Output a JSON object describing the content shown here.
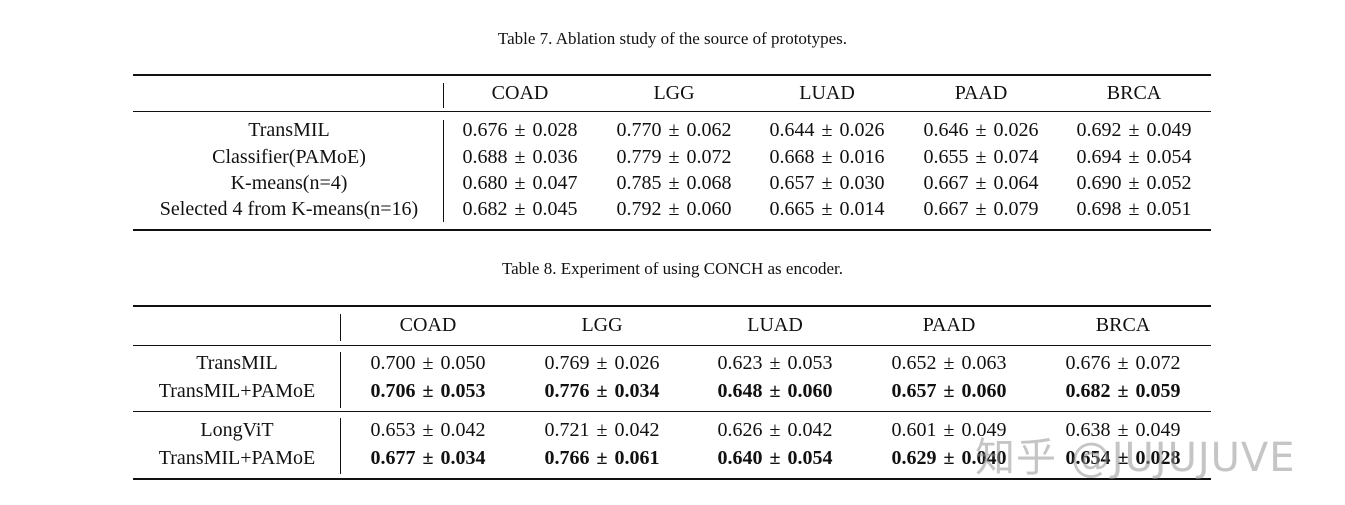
{
  "table7": {
    "caption": "Table 7. Ablation study of the source of prototypes.",
    "columns": [
      "COAD",
      "LGG",
      "LUAD",
      "PAAD",
      "BRCA"
    ],
    "rows": [
      {
        "label": "TransMIL",
        "values": [
          [
            "0.676",
            "0.028"
          ],
          [
            "0.770",
            "0.062"
          ],
          [
            "0.644",
            "0.026"
          ],
          [
            "0.646",
            "0.026"
          ],
          [
            "0.692",
            "0.049"
          ]
        ]
      },
      {
        "label": "Classifier(PAMoE)",
        "values": [
          [
            "0.688",
            "0.036"
          ],
          [
            "0.779",
            "0.072"
          ],
          [
            "0.668",
            "0.016"
          ],
          [
            "0.655",
            "0.074"
          ],
          [
            "0.694",
            "0.054"
          ]
        ]
      },
      {
        "label": "K-means(n=4)",
        "values": [
          [
            "0.680",
            "0.047"
          ],
          [
            "0.785",
            "0.068"
          ],
          [
            "0.657",
            "0.030"
          ],
          [
            "0.667",
            "0.064"
          ],
          [
            "0.690",
            "0.052"
          ]
        ]
      },
      {
        "label": "Selected 4 from K-means(n=16)",
        "values": [
          [
            "0.682",
            "0.045"
          ],
          [
            "0.792",
            "0.060"
          ],
          [
            "0.665",
            "0.014"
          ],
          [
            "0.667",
            "0.079"
          ],
          [
            "0.698",
            "0.051"
          ]
        ]
      }
    ]
  },
  "table8": {
    "caption": "Table 8. Experiment of using CONCH as encoder.",
    "columns": [
      "COAD",
      "LGG",
      "LUAD",
      "PAAD",
      "BRCA"
    ],
    "rows": [
      {
        "label": "TransMIL",
        "bold": false,
        "values": [
          [
            "0.700",
            "0.050"
          ],
          [
            "0.769",
            "0.026"
          ],
          [
            "0.623",
            "0.053"
          ],
          [
            "0.652",
            "0.063"
          ],
          [
            "0.676",
            "0.072"
          ]
        ]
      },
      {
        "label": "TransMIL+PAMoE",
        "bold": true,
        "values": [
          [
            "0.706",
            "0.053"
          ],
          [
            "0.776",
            "0.034"
          ],
          [
            "0.648",
            "0.060"
          ],
          [
            "0.657",
            "0.060"
          ],
          [
            "0.682",
            "0.059"
          ]
        ]
      },
      {
        "label": "LongViT",
        "bold": false,
        "values": [
          [
            "0.653",
            "0.042"
          ],
          [
            "0.721",
            "0.042"
          ],
          [
            "0.626",
            "0.042"
          ],
          [
            "0.601",
            "0.049"
          ],
          [
            "0.638",
            "0.049"
          ]
        ]
      },
      {
        "label": "TransMIL+PAMoE",
        "bold": true,
        "values": [
          [
            "0.677",
            "0.034"
          ],
          [
            "0.766",
            "0.061"
          ],
          [
            "0.640",
            "0.054"
          ],
          [
            "0.629",
            "0.040"
          ],
          [
            "0.654",
            "0.028"
          ]
        ]
      }
    ]
  },
  "watermark": "知乎 @JUJUJUVE",
  "pm_symbol": "±"
}
